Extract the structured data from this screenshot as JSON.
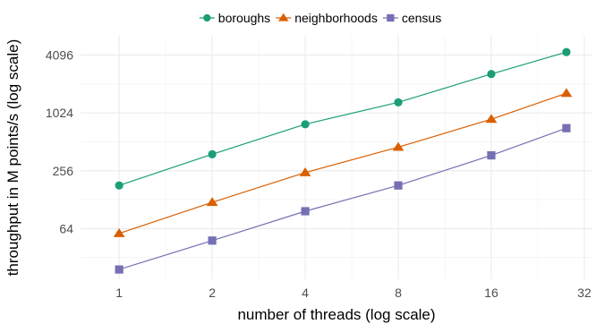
{
  "chart_data": {
    "type": "line",
    "title": "",
    "xlabel": "number of threads (log scale)",
    "ylabel": "throughput in M points/s (log scale)",
    "x_scale": "log2",
    "y_scale": "log2",
    "xlim": [
      0.75,
      34
    ],
    "ylim": [
      19,
      6500
    ],
    "x_ticks": [
      1,
      2,
      4,
      8,
      16,
      32
    ],
    "y_ticks": [
      64,
      256,
      1024,
      4096
    ],
    "grid": true,
    "legend_position": "top",
    "series": [
      {
        "name": "boroughs",
        "color": "#1b9e77",
        "marker": "circle",
        "x": [
          1,
          2,
          4,
          8,
          16,
          28
        ],
        "y": [
          180,
          380,
          780,
          1320,
          2600,
          4400
        ]
      },
      {
        "name": "neighborhoods",
        "color": "#d95f02",
        "marker": "triangle",
        "x": [
          1,
          2,
          4,
          8,
          16,
          28
        ],
        "y": [
          57,
          120,
          245,
          450,
          880,
          1640
        ]
      },
      {
        "name": "census",
        "color": "#7570b3",
        "marker": "square",
        "x": [
          1,
          2,
          4,
          8,
          16,
          28
        ],
        "y": [
          24,
          48,
          97,
          180,
          370,
          710
        ]
      }
    ]
  }
}
